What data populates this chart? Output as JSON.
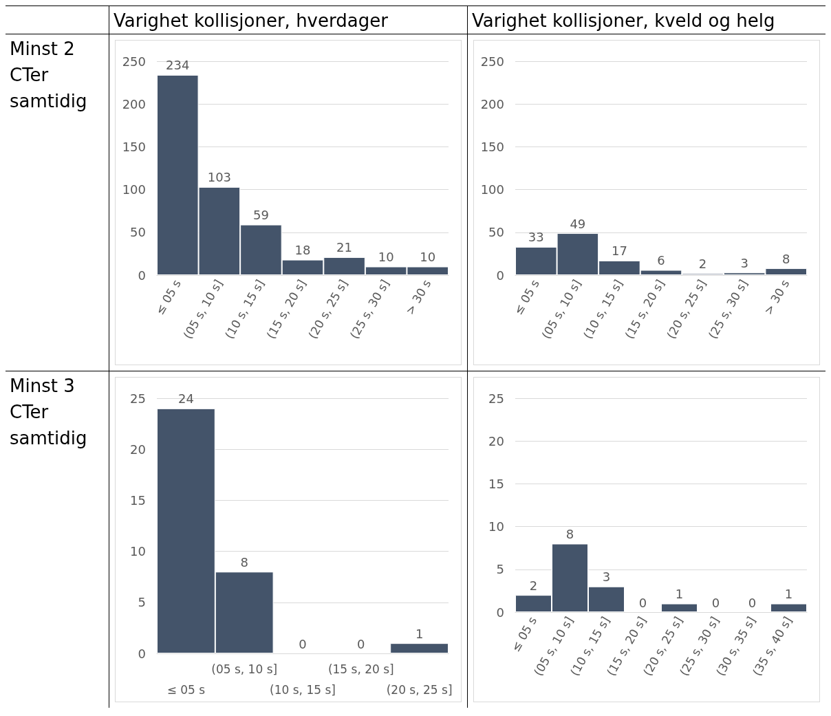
{
  "chart_data": [
    {
      "type": "bar",
      "title": "Varighet kollisjoner, hverdager",
      "annotations": [
        "Minst 2 CTer samtidig"
      ],
      "categories": [
        "≤ 05 s",
        "(05 s, 10 s]",
        "(10 s, 15 s]",
        "(15 s, 20 s]",
        "(20 s, 25 s]",
        "(25 s, 30 s]",
        "> 30 s"
      ],
      "values": [
        234,
        103,
        59,
        18,
        21,
        10,
        10
      ],
      "color": "#44546a",
      "ylim": [
        0,
        250
      ],
      "yticks": [
        0,
        50,
        100,
        150,
        200,
        250
      ],
      "grid": "y",
      "data_labels": true
    },
    {
      "type": "bar",
      "title": "Varighet kollisjoner, kveld og helg",
      "categories": [
        "≤ 05 s",
        "(05 s, 10 s]",
        "(10 s, 15 s]",
        "(15 s, 20 s]",
        "(20 s, 25 s]",
        "(25 s, 30 s]",
        "> 30 s"
      ],
      "values": [
        33,
        49,
        17,
        6,
        2,
        3,
        8
      ],
      "color": "#44546a",
      "ylim": [
        0,
        250
      ],
      "yticks": [
        0,
        50,
        100,
        150,
        200,
        250
      ],
      "grid": "y",
      "data_labels": true
    },
    {
      "type": "bar",
      "annotations": [
        "Minst 3 CTer samtidig"
      ],
      "categories": [
        "≤ 05 s",
        "(05 s, 10 s]",
        "(10 s, 15 s]",
        "(15 s, 20 s]",
        "(20 s, 25 s]"
      ],
      "values": [
        24,
        8,
        0,
        0,
        1
      ],
      "color": "#44546a",
      "ylim": [
        0,
        25
      ],
      "yticks": [
        0,
        5,
        10,
        15,
        20,
        25
      ],
      "grid": "y",
      "data_labels": true
    },
    {
      "type": "bar",
      "categories": [
        "≤ 05 s",
        "(05 s, 10 s]",
        "(10 s, 15 s]",
        "(15 s, 20 s]",
        "(20 s, 25 s]",
        "(25 s, 30 s]",
        "(30 s, 35 s]",
        "(35 s, 40 s]"
      ],
      "values": [
        2,
        8,
        3,
        0,
        1,
        0,
        0,
        1
      ],
      "color": "#44546a",
      "ylim": [
        0,
        25
      ],
      "yticks": [
        0,
        5,
        10,
        15,
        20,
        25
      ],
      "grid": "y",
      "data_labels": true
    }
  ]
}
